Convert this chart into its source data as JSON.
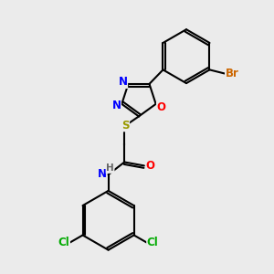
{
  "bg_color": "#ebebeb",
  "bond_color": "#000000",
  "bond_width": 1.5,
  "atom_colors": {
    "N": "#0000ff",
    "O": "#ff0000",
    "S": "#999900",
    "Br": "#cc6600",
    "Cl": "#00aa00",
    "H": "#666666",
    "C": "#000000"
  },
  "font_size": 8.5,
  "fig_size": [
    3.0,
    3.0
  ],
  "dpi": 100
}
